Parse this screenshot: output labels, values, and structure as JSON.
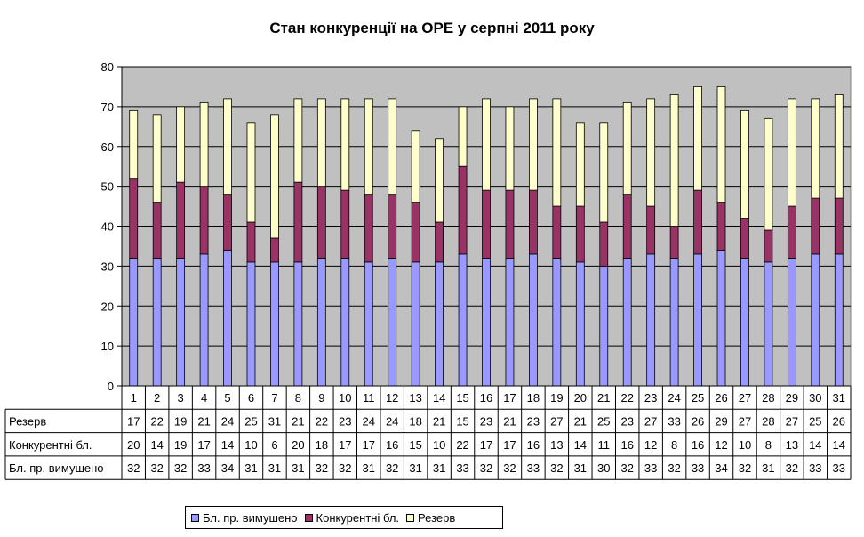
{
  "chart_data": {
    "type": "bar",
    "stacked": true,
    "title": "Стан конкуренції на ОРЕ  у серпні 2011 року",
    "categories": [
      "1",
      "2",
      "3",
      "4",
      "5",
      "6",
      "7",
      "8",
      "9",
      "10",
      "11",
      "12",
      "13",
      "14",
      "15",
      "16",
      "17",
      "18",
      "19",
      "20",
      "21",
      "22",
      "23",
      "24",
      "25",
      "26",
      "27",
      "28",
      "29",
      "30",
      "31"
    ],
    "ylim": [
      0,
      80
    ],
    "yticks": [
      0,
      10,
      20,
      30,
      40,
      50,
      60,
      70,
      80
    ],
    "grid": true,
    "legend_position": "bottom",
    "plot_background": "#c0c0c0",
    "series": [
      {
        "name": "Бл. пр. вимушено",
        "color": "#9999ff",
        "values": [
          32,
          32,
          32,
          33,
          34,
          31,
          31,
          31,
          32,
          32,
          31,
          32,
          31,
          31,
          33,
          32,
          32,
          33,
          32,
          31,
          30,
          32,
          33,
          32,
          33,
          34,
          32,
          31,
          32,
          33,
          33
        ]
      },
      {
        "name": "Конкурентні бл.",
        "color": "#993366",
        "values": [
          20,
          14,
          19,
          17,
          14,
          10,
          6,
          20,
          18,
          17,
          17,
          16,
          15,
          10,
          22,
          17,
          17,
          16,
          13,
          14,
          11,
          16,
          12,
          8,
          16,
          12,
          10,
          8,
          13,
          14,
          14
        ]
      },
      {
        "name": "Резерв",
        "color": "#ffffcc",
        "values": [
          17,
          22,
          19,
          21,
          24,
          25,
          31,
          21,
          22,
          23,
          24,
          24,
          18,
          21,
          15,
          23,
          21,
          23,
          27,
          21,
          25,
          23,
          27,
          33,
          26,
          29,
          27,
          28,
          27,
          25,
          26
        ]
      }
    ],
    "table": {
      "rows": [
        {
          "label": "Резерв",
          "values": [
            "17",
            "22",
            "19",
            "21",
            "24",
            "25",
            "31",
            "21",
            "22",
            "23",
            "24",
            "24",
            "18",
            "21",
            "15",
            "23",
            "21",
            "23",
            "27",
            "21",
            "25",
            "23",
            "27",
            "33",
            "26",
            "29",
            "27",
            "28",
            "27",
            "25",
            "26"
          ]
        },
        {
          "label": "Конкурентні бл.",
          "values": [
            "20",
            "14",
            "19",
            "17",
            "14",
            "10",
            "6",
            "20",
            "18",
            "17",
            "17",
            "16",
            "15",
            "10",
            "22",
            "17",
            "17",
            "16",
            "13",
            "14",
            "11",
            "16",
            "12",
            "8",
            "16",
            "12",
            "10",
            "8",
            "13",
            "14",
            "14"
          ]
        },
        {
          "label": "Бл. пр. вимушено",
          "values": [
            "32",
            "32",
            "32",
            "33",
            "34",
            "31",
            "31",
            "31",
            "32",
            "32",
            "31",
            "32",
            "31",
            "31",
            "33",
            "32",
            "32",
            "33",
            "32",
            "31",
            "30",
            "32",
            "33",
            "32",
            "33",
            "34",
            "32",
            "31",
            "32",
            "33",
            "33"
          ]
        }
      ]
    }
  },
  "legend": {
    "items": [
      {
        "label": "Бл. пр. вимушено",
        "color": "#9999ff"
      },
      {
        "label": "Конкурентні бл.",
        "color": "#993366"
      },
      {
        "label": "Резерв",
        "color": "#ffffcc"
      }
    ]
  }
}
